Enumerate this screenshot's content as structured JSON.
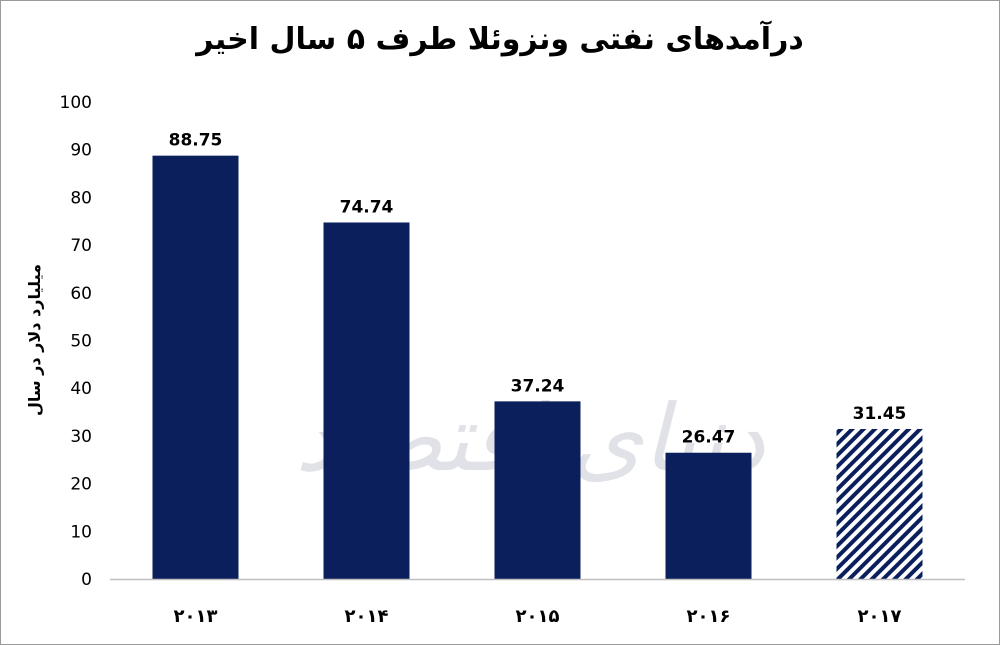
{
  "watermark": "دنیای اقتصاد",
  "colors": {
    "bar": "#0a1f5c",
    "stripe": "#0a1f5c",
    "axis": "#bfbfbf"
  },
  "chart_data": {
    "type": "bar",
    "title": "درآمدهای نفتی ونزوئلا طرف ۵ سال اخیر",
    "ylabel": "میلیارد دلار در سال",
    "xlabel": "",
    "categories": [
      "۲۰۱۳",
      "۲۰۱۴",
      "۲۰۱۵",
      "۲۰۱۶",
      "۲۰۱۷"
    ],
    "values": [
      88.75,
      74.74,
      37.24,
      26.47,
      31.45
    ],
    "value_labels": [
      "88.75",
      "74.74",
      "37.24",
      "26.47",
      "31.45"
    ],
    "patterns": [
      "solid",
      "solid",
      "solid",
      "solid",
      "hatched"
    ],
    "ylim": [
      0,
      100
    ],
    "yticks": [
      0,
      10,
      20,
      30,
      40,
      50,
      60,
      70,
      80,
      90,
      100
    ],
    "grid": false,
    "legend": "none"
  }
}
